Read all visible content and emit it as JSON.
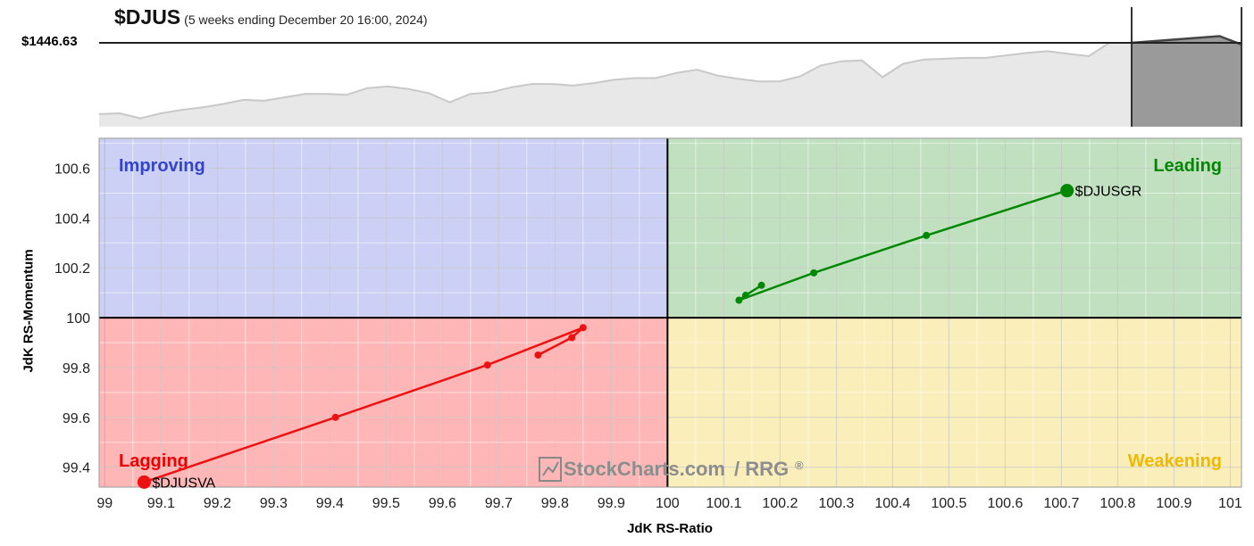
{
  "header": {
    "symbol": "$DJUS",
    "subtitle": "(5 weeks ending December 20 16:00, 2024)",
    "price_label": "$1446.63"
  },
  "watermark": {
    "text_a": "StockCharts.com",
    "text_b": "/ RRG",
    "mark": "®"
  },
  "chart_data": [
    {
      "type": "area",
      "title": "$DJUS",
      "subtitle": "(5 weeks ending December 20 16:00, 2024)",
      "reference_value_label": "$1446.63",
      "history": [
        0.15,
        0.16,
        0.1,
        0.16,
        0.2,
        0.23,
        0.27,
        0.32,
        0.31,
        0.35,
        0.39,
        0.39,
        0.38,
        0.46,
        0.48,
        0.45,
        0.4,
        0.29,
        0.39,
        0.41,
        0.47,
        0.51,
        0.51,
        0.49,
        0.52,
        0.56,
        0.58,
        0.58,
        0.64,
        0.68,
        0.61,
        0.57,
        0.54,
        0.54,
        0.6,
        0.73,
        0.78,
        0.79,
        0.59,
        0.75,
        0.8,
        0.81,
        0.82,
        0.82,
        0.85,
        0.88,
        0.9,
        0.87,
        0.84,
        1.0
      ],
      "highlight_window": [
        1.0,
        1.02,
        1.04,
        1.06,
        1.08,
        0.98
      ],
      "colors": {
        "history_fill": "#e8e8e8",
        "history_line": "#c8c8c8",
        "window_fill": "#9a9a9a",
        "window_line": "#444444",
        "reference_line": "#222222"
      }
    },
    {
      "type": "scatter",
      "xlabel": "JdK RS-Ratio",
      "ylabel": "JdK RS-Momentum",
      "xlim": [
        98.99,
        101.02
      ],
      "ylim": [
        99.32,
        100.72
      ],
      "x_ticks": [
        99,
        99.1,
        99.2,
        99.3,
        99.4,
        99.5,
        99.6,
        99.7,
        99.8,
        99.9,
        100,
        100.1,
        100.2,
        100.3,
        100.4,
        100.5,
        100.6,
        100.7,
        100.8,
        100.9,
        101
      ],
      "y_ticks": [
        99.4,
        99.6,
        99.8,
        100,
        100.2,
        100.4,
        100.6
      ],
      "center": {
        "x": 100,
        "y": 100
      },
      "grid": true,
      "quadrants": [
        {
          "name": "Improving",
          "position": "top-left",
          "fill": "#ccd0f4",
          "text_color": "#3344cc"
        },
        {
          "name": "Leading",
          "position": "top-right",
          "fill": "#c0e0c0",
          "text_color": "#008800"
        },
        {
          "name": "Lagging",
          "position": "bottom-left",
          "fill": "#ffb6b6",
          "text_color": "#ee0000"
        },
        {
          "name": "Weakening",
          "position": "bottom-right",
          "fill": "#faeebb",
          "text_color": "#f0b800"
        }
      ],
      "series": [
        {
          "name": "$DJUSGR",
          "color": "#008800",
          "points": [
            [
              100.167,
              100.13
            ],
            [
              100.139,
              100.09
            ],
            [
              100.127,
              100.07
            ],
            [
              100.26,
              100.18
            ],
            [
              100.46,
              100.33
            ],
            [
              100.71,
              100.51
            ]
          ]
        },
        {
          "name": "$DJUSVA",
          "color": "#ee1111",
          "points": [
            [
              99.77,
              99.85
            ],
            [
              99.83,
              99.92
            ],
            [
              99.85,
              99.96
            ],
            [
              99.68,
              99.81
            ],
            [
              99.41,
              99.6
            ],
            [
              99.07,
              99.34
            ]
          ]
        }
      ]
    }
  ]
}
